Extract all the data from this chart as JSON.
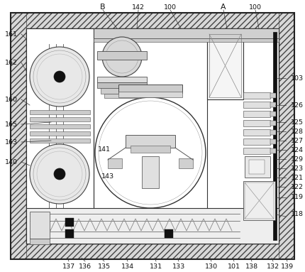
{
  "fig_width": 4.3,
  "fig_height": 3.83,
  "dpi": 100,
  "bg_color": "#ffffff"
}
